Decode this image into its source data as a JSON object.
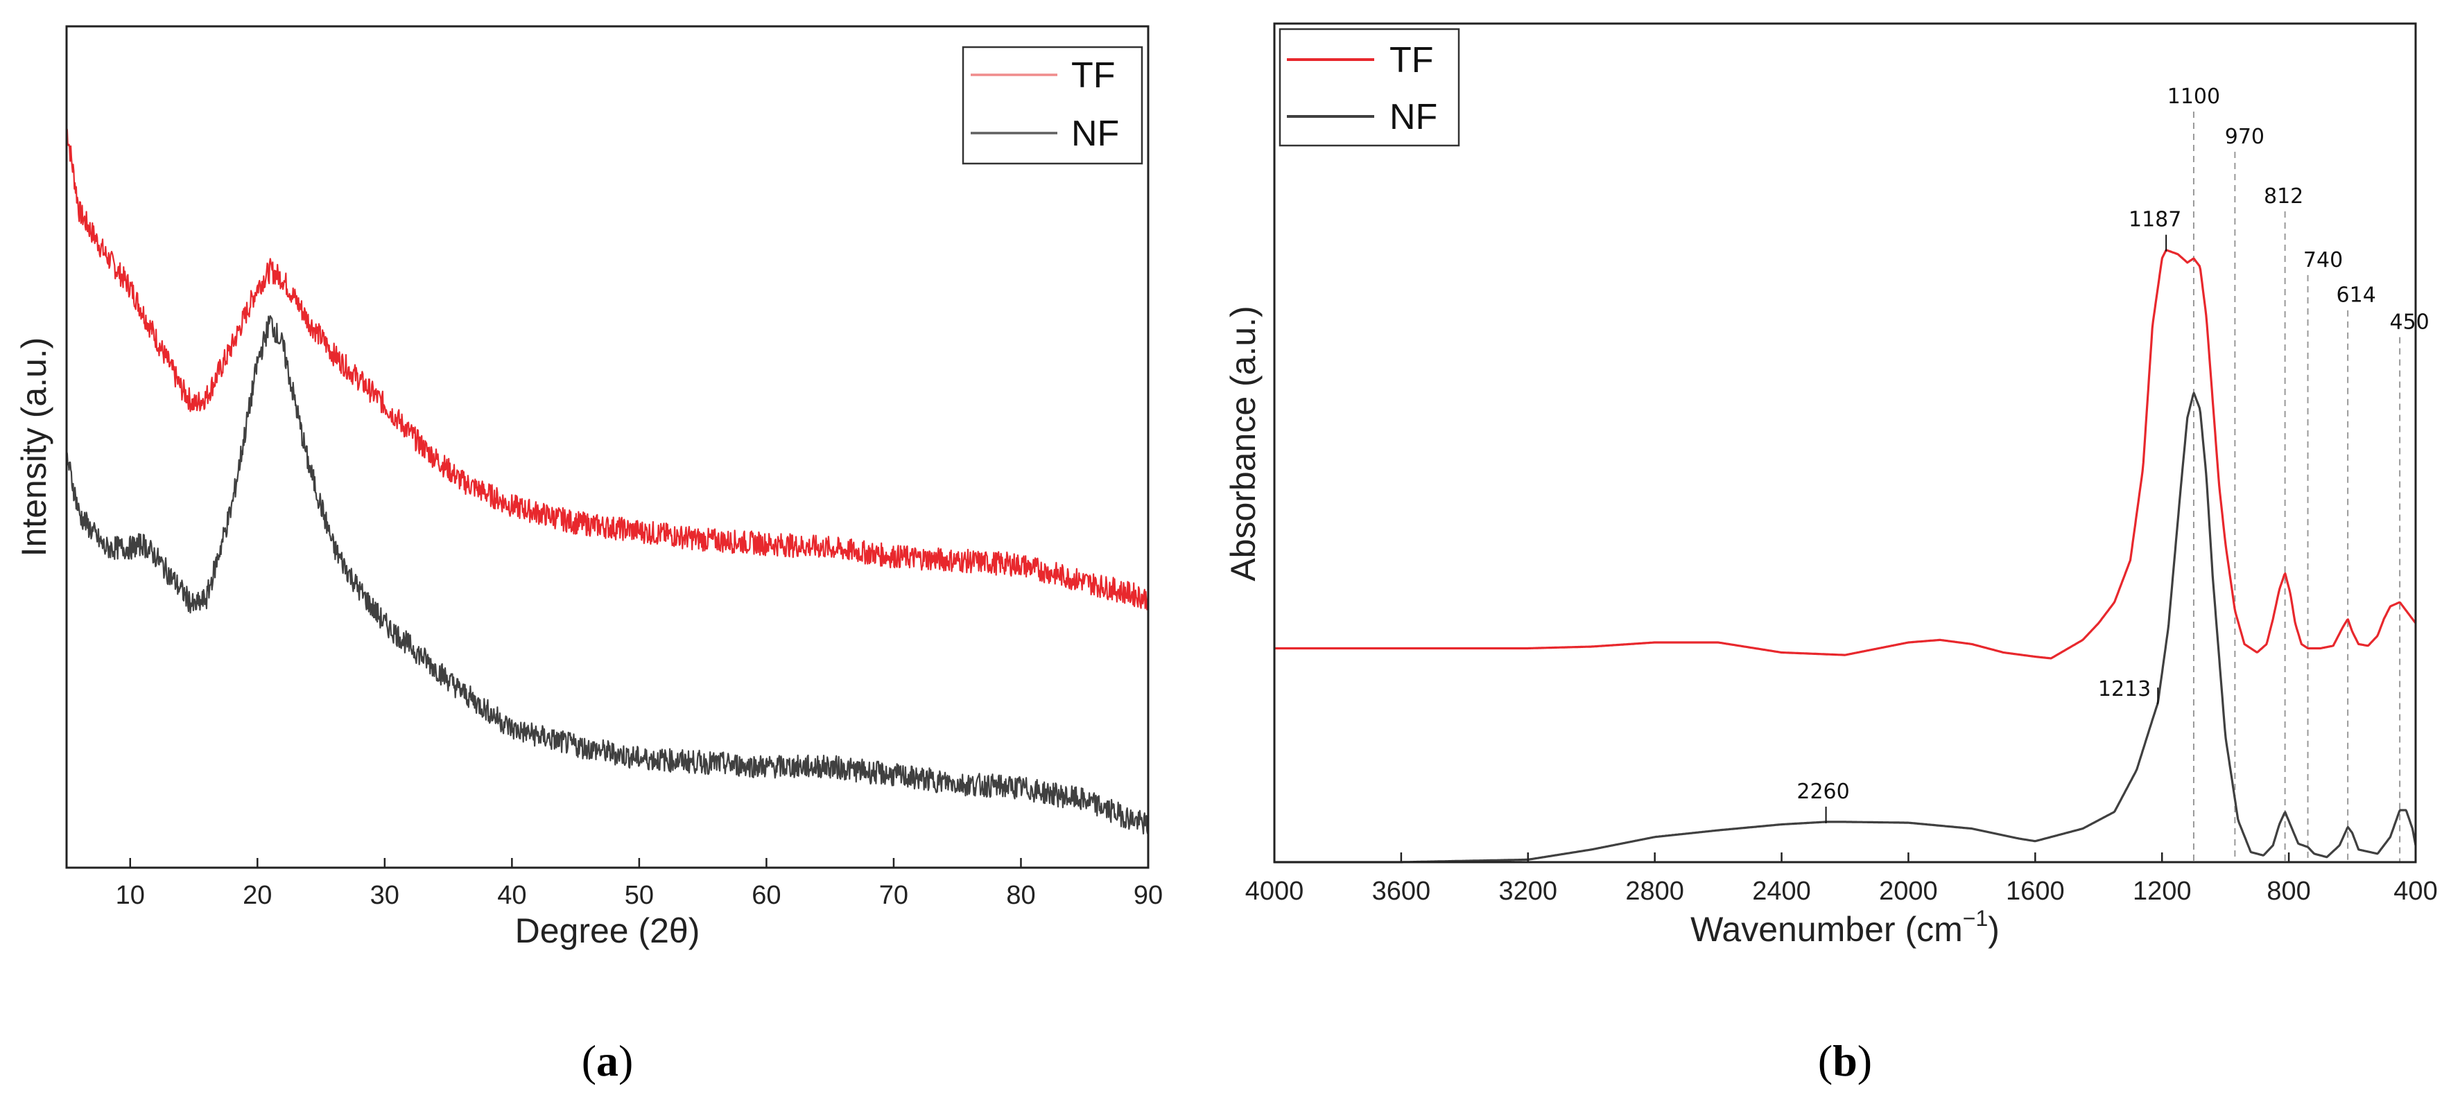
{
  "figure_labels": {
    "a_open": "(",
    "a_letter": "a",
    "a_close": ")",
    "b_open": "(",
    "b_letter": "b",
    "b_close": ")"
  },
  "chart_data": [
    {
      "type": "line",
      "panel": "a",
      "title": "",
      "xlabel": "Degree (2θ)",
      "ylabel": "Intensity (a.u.)",
      "xlim": [
        5,
        90
      ],
      "ylim": [
        0,
        1
      ],
      "xticks": [
        10,
        20,
        30,
        40,
        50,
        60,
        70,
        80,
        90
      ],
      "yticks_shown": false,
      "grid": false,
      "legend": {
        "position": "top-right",
        "entries": [
          "TF",
          "NF"
        ]
      },
      "series": [
        {
          "name": "TF",
          "color": "#e8282d",
          "x": [
            5,
            6,
            8,
            10,
            12,
            14,
            15,
            16,
            18,
            20,
            21,
            22,
            24,
            26,
            28,
            30,
            33,
            36,
            40,
            45,
            50,
            55,
            60,
            65,
            70,
            75,
            80,
            85,
            90
          ],
          "y": [
            0.88,
            0.78,
            0.73,
            0.69,
            0.63,
            0.57,
            0.55,
            0.56,
            0.62,
            0.69,
            0.71,
            0.7,
            0.65,
            0.61,
            0.58,
            0.55,
            0.5,
            0.46,
            0.43,
            0.41,
            0.4,
            0.39,
            0.385,
            0.38,
            0.37,
            0.365,
            0.36,
            0.34,
            0.32
          ]
        },
        {
          "name": "NF",
          "color": "#404040",
          "x": [
            5,
            6,
            8,
            10,
            11,
            12,
            14,
            15,
            16,
            18,
            20,
            21,
            22,
            23,
            24,
            26,
            28,
            30,
            33,
            36,
            40,
            45,
            50,
            55,
            60,
            65,
            70,
            75,
            80,
            85,
            90
          ],
          "y": [
            0.49,
            0.42,
            0.38,
            0.38,
            0.385,
            0.37,
            0.33,
            0.31,
            0.32,
            0.43,
            0.6,
            0.65,
            0.62,
            0.55,
            0.48,
            0.38,
            0.33,
            0.29,
            0.25,
            0.21,
            0.165,
            0.145,
            0.13,
            0.125,
            0.12,
            0.12,
            0.11,
            0.1,
            0.095,
            0.08,
            0.05
          ]
        }
      ]
    },
    {
      "type": "line",
      "panel": "b",
      "title": "",
      "xlabel_main": "Wavenumber (cm",
      "xlabel_sup": "−1",
      "xlabel_end": ")",
      "ylabel": "Absorbance (a.u.)",
      "xlim": [
        4000,
        400
      ],
      "ylim": [
        0,
        1
      ],
      "x_reversed": true,
      "xticks": [
        4000,
        3600,
        3200,
        2800,
        2400,
        2000,
        1600,
        1200,
        800,
        400
      ],
      "yticks_shown": false,
      "grid": false,
      "legend": {
        "position": "top-left",
        "entries": [
          "TF",
          "NF"
        ]
      },
      "series": [
        {
          "name": "TF",
          "color": "#e8282d",
          "x": [
            4000,
            3600,
            3200,
            3000,
            2800,
            2600,
            2400,
            2200,
            2000,
            1900,
            1800,
            1700,
            1600,
            1550,
            1450,
            1400,
            1350,
            1300,
            1260,
            1230,
            1200,
            1187,
            1150,
            1120,
            1100,
            1080,
            1060,
            1040,
            1020,
            1000,
            970,
            940,
            900,
            870,
            850,
            830,
            812,
            795,
            780,
            760,
            740,
            700,
            660,
            630,
            614,
            600,
            580,
            550,
            520,
            500,
            480,
            450,
            430,
            400
          ],
          "y": [
            0.255,
            0.255,
            0.255,
            0.257,
            0.262,
            0.262,
            0.25,
            0.247,
            0.262,
            0.265,
            0.26,
            0.25,
            0.245,
            0.243,
            0.265,
            0.285,
            0.31,
            0.36,
            0.47,
            0.64,
            0.72,
            0.73,
            0.725,
            0.715,
            0.72,
            0.71,
            0.65,
            0.55,
            0.45,
            0.38,
            0.3,
            0.26,
            0.25,
            0.26,
            0.29,
            0.325,
            0.345,
            0.32,
            0.285,
            0.26,
            0.255,
            0.255,
            0.258,
            0.28,
            0.29,
            0.275,
            0.26,
            0.258,
            0.27,
            0.29,
            0.305,
            0.31,
            0.3,
            0.285
          ]
        },
        {
          "name": "NF",
          "color": "#404040",
          "x": [
            4000,
            3600,
            3200,
            3000,
            2800,
            2600,
            2400,
            2260,
            2200,
            2000,
            1800,
            1650,
            1600,
            1550,
            1450,
            1350,
            1280,
            1230,
            1213,
            1180,
            1140,
            1120,
            1100,
            1080,
            1060,
            1040,
            1000,
            960,
            920,
            880,
            850,
            830,
            812,
            790,
            770,
            740,
            720,
            680,
            640,
            614,
            600,
            580,
            520,
            480,
            450,
            430,
            410,
            400
          ],
          "y": [
            0.0,
            0.0,
            0.003,
            0.015,
            0.03,
            0.038,
            0.045,
            0.048,
            0.048,
            0.047,
            0.04,
            0.028,
            0.025,
            0.03,
            0.04,
            0.06,
            0.11,
            0.17,
            0.19,
            0.28,
            0.45,
            0.53,
            0.56,
            0.54,
            0.46,
            0.34,
            0.15,
            0.05,
            0.012,
            0.008,
            0.02,
            0.045,
            0.06,
            0.04,
            0.022,
            0.018,
            0.01,
            0.006,
            0.02,
            0.042,
            0.035,
            0.015,
            0.01,
            0.03,
            0.062,
            0.062,
            0.04,
            0.02
          ]
        }
      ],
      "annotations": [
        {
          "text": "1100",
          "x": 1100,
          "style": "dashed-line"
        },
        {
          "text": "970",
          "x": 970,
          "style": "dashed-line"
        },
        {
          "text": "812",
          "x": 812,
          "style": "dashed-line"
        },
        {
          "text": "740",
          "x": 740,
          "style": "dashed-line"
        },
        {
          "text": "614",
          "x": 614,
          "style": "dashed-line"
        },
        {
          "text": "450",
          "x": 450,
          "style": "dashed-line"
        },
        {
          "text": "1187",
          "x": 1187,
          "style": "tick-mark"
        },
        {
          "text": "1213",
          "x": 1213,
          "style": "tick-mark"
        },
        {
          "text": "2260",
          "x": 2260,
          "style": "tick-mark"
        }
      ]
    }
  ]
}
